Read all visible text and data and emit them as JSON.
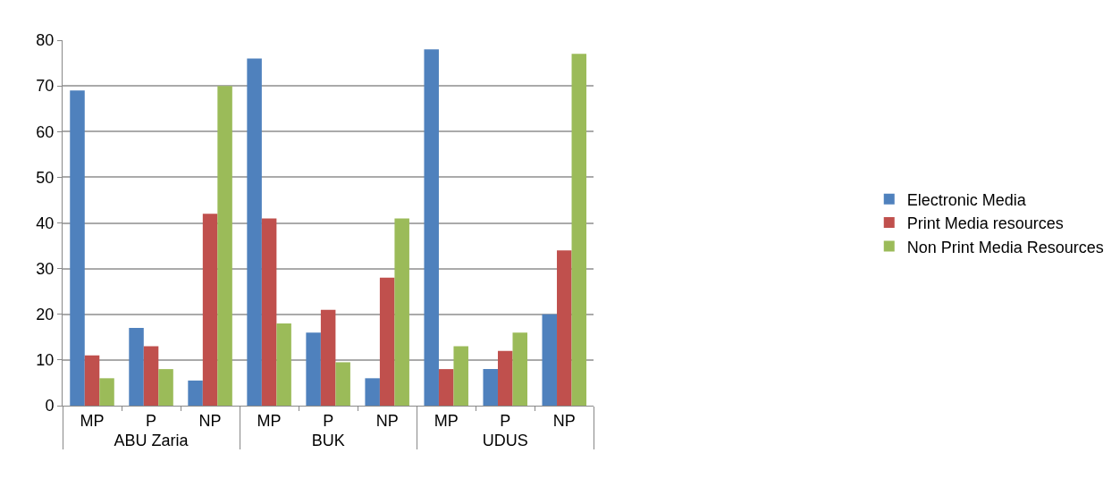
{
  "chart_data": {
    "type": "bar",
    "categories": [
      "MP",
      "P",
      "NP",
      "MP",
      "P",
      "NP",
      "MP",
      "P",
      "NP"
    ],
    "annotations": [
      "ABU Zaria",
      "BUK",
      "UDUS"
    ],
    "series": [
      {
        "name": "Electronic Media",
        "color": "#4f81bd",
        "values": [
          69,
          17,
          5.5,
          76,
          16,
          6,
          78,
          8,
          20
        ]
      },
      {
        "name": "Print Media resources",
        "color": "#c0504d",
        "values": [
          11,
          13,
          42,
          41,
          21,
          28,
          8,
          12,
          34
        ]
      },
      {
        "name": "Non Print Media Resources",
        "color": "#9bbb59",
        "values": [
          6,
          8,
          70,
          18,
          9.5,
          41,
          13,
          16,
          77
        ]
      }
    ],
    "ylim": [
      0,
      80
    ],
    "yticks": [
      0,
      10,
      20,
      30,
      40,
      50,
      60,
      70,
      80
    ],
    "grid": "y",
    "legend": "right"
  }
}
